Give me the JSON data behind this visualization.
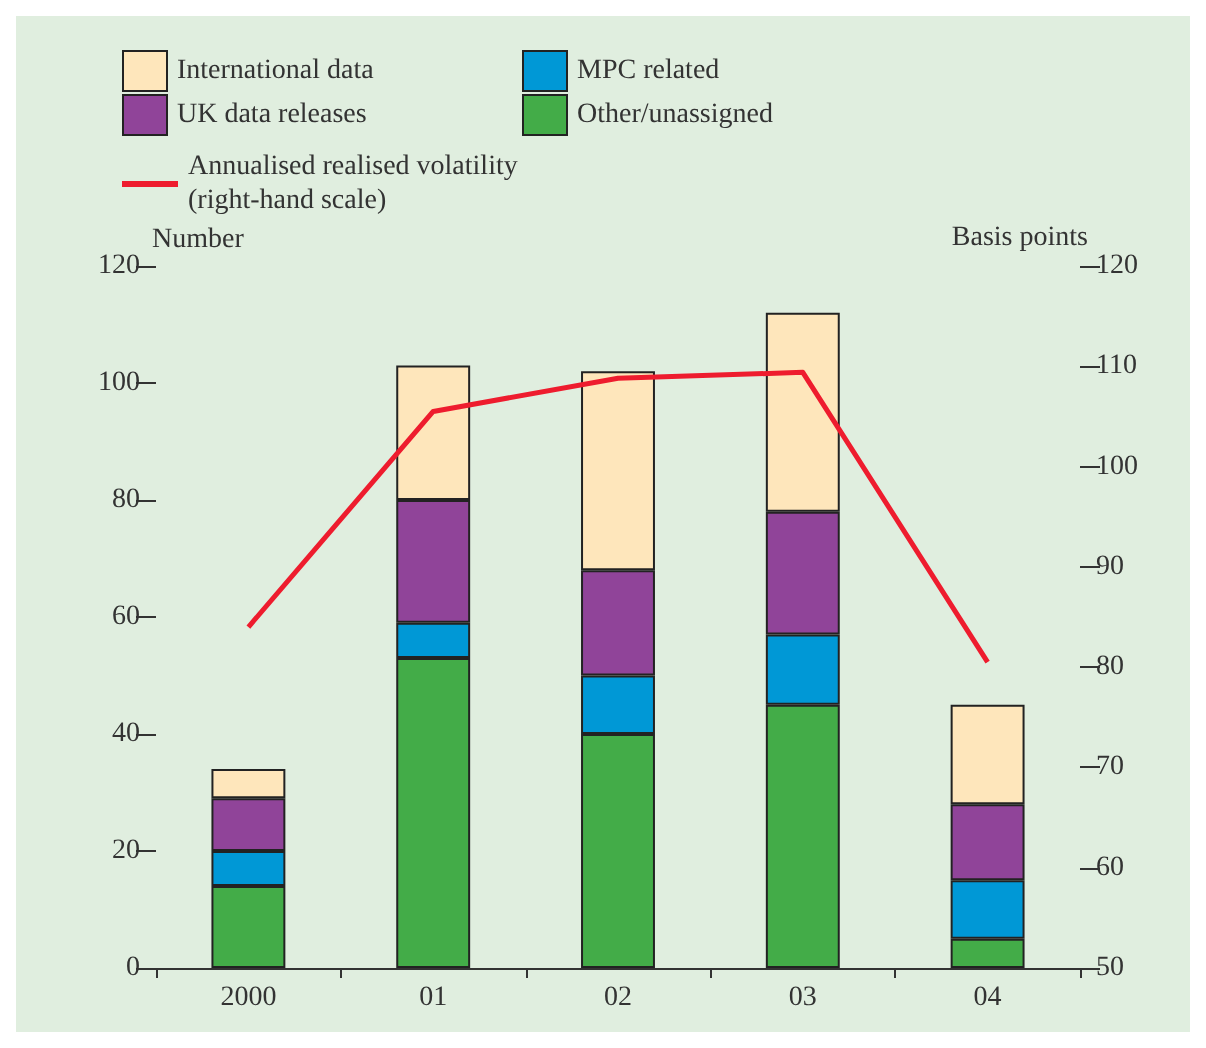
{
  "chart_data": {
    "type": "bar",
    "stacked": true,
    "ylabel": "Number",
    "y2label": "Basis points",
    "categories": [
      "2000",
      "01",
      "02",
      "03",
      "04"
    ],
    "series": [
      {
        "name": "Other/unassigned",
        "color": "#43ac48",
        "values": [
          14,
          53,
          40,
          45,
          5
        ]
      },
      {
        "name": "MPC related",
        "color": "#0098d6",
        "values": [
          6,
          6,
          10,
          12,
          10
        ]
      },
      {
        "name": "UK data releases",
        "color": "#904499",
        "values": [
          9,
          21,
          18,
          21,
          13
        ]
      },
      {
        "name": "International data",
        "color": "#fee6bb",
        "values": [
          5,
          23,
          34,
          34,
          17
        ]
      },
      {
        "name": "Annualised realised volatility\n(right-hand scale)",
        "type": "line",
        "axis": "y2",
        "color": "#ee1c2e",
        "values": [
          84,
          105.5,
          108.8,
          109.4,
          80.5
        ]
      }
    ],
    "ylim": [
      0,
      120
    ],
    "yticks": [
      0,
      20,
      40,
      60,
      80,
      100,
      120
    ],
    "y2lim": [
      50,
      120
    ],
    "y2ticks": [
      50,
      60,
      70,
      80,
      90,
      100,
      110,
      120
    ],
    "grid": false,
    "legend": "top left"
  }
}
